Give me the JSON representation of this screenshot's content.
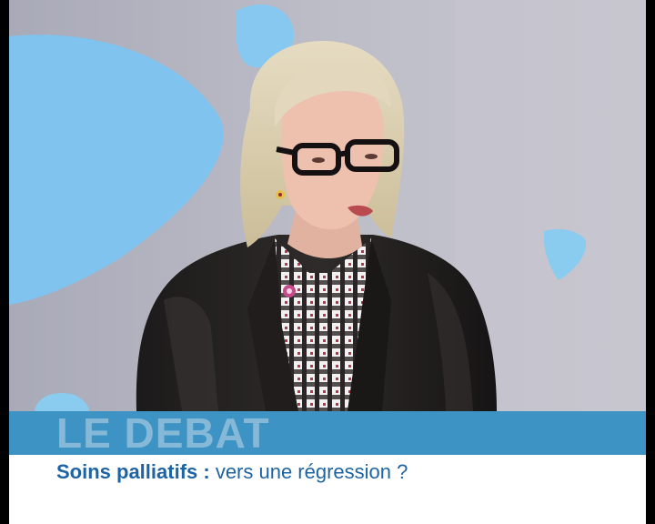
{
  "program": {
    "title": "LE DEBAT",
    "subtitle_topic": "Soins palliatifs :",
    "subtitle_rest": " vers une régression ?"
  },
  "colors": {
    "band": "#3d93c4",
    "band_text": "#86b9d8",
    "subtitle_text": "#1e64a4",
    "background": "#b9b9c4",
    "accent_shapes": "#7fc3ee"
  }
}
